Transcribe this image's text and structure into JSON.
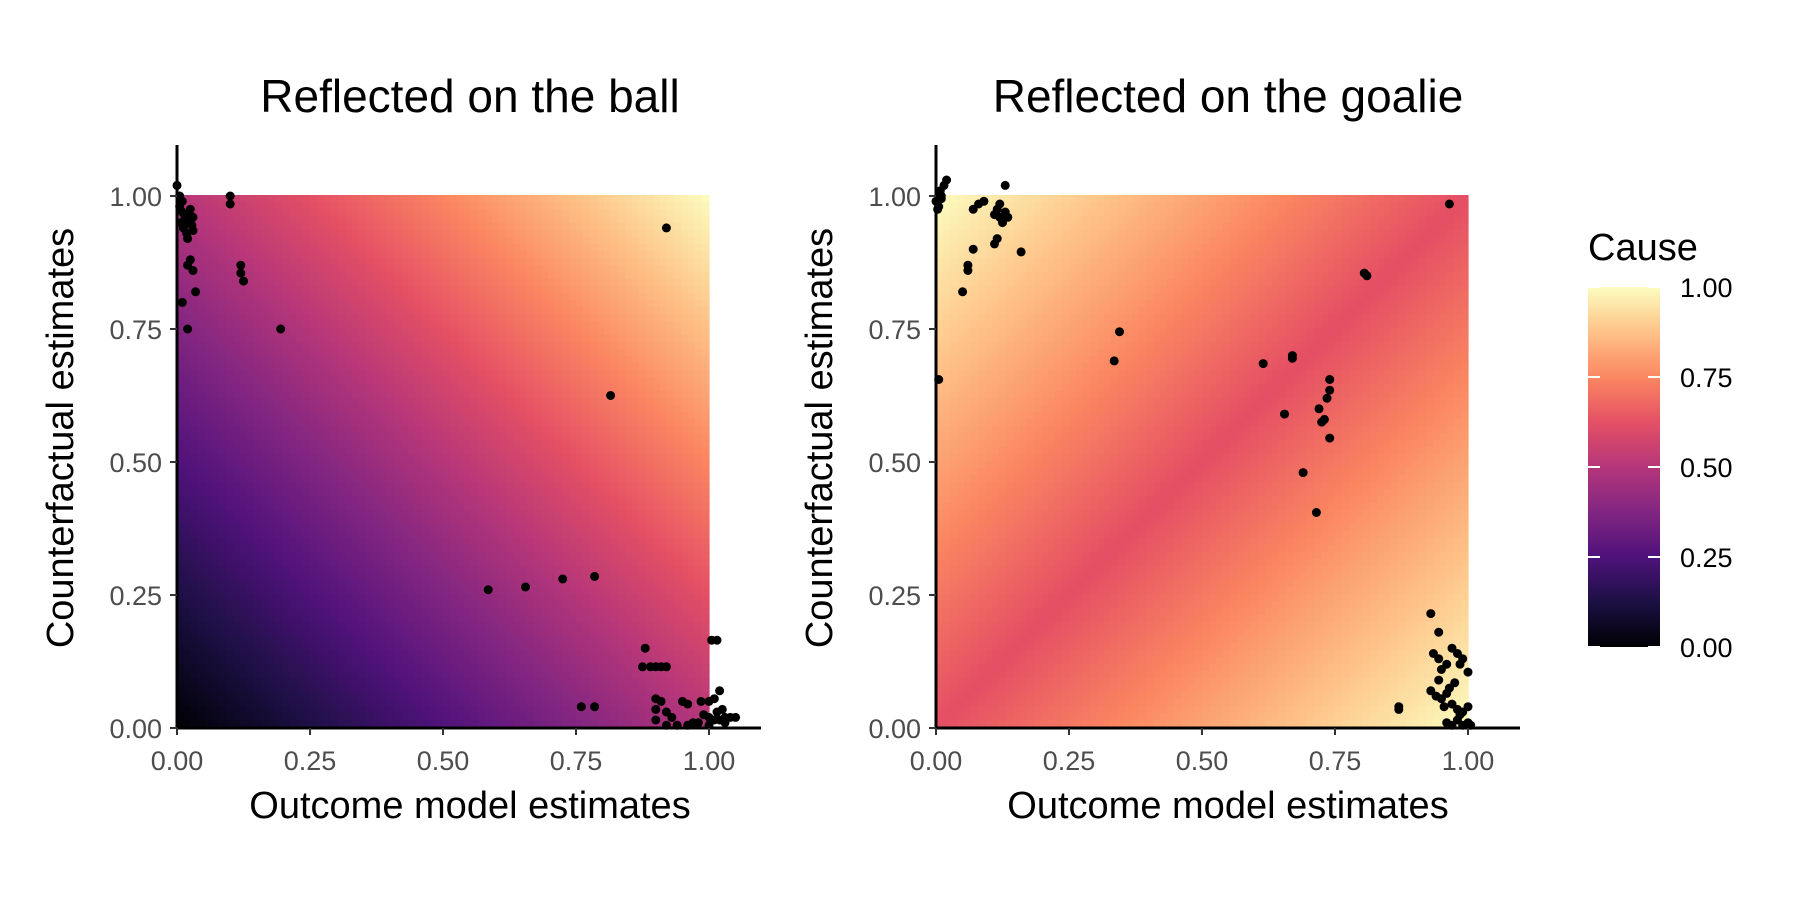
{
  "chart_data": [
    {
      "type": "scatter",
      "title": "Reflected on the ball",
      "xlabel": "Outcome model estimates",
      "ylabel": "Counterfactual estimates",
      "xlim": [
        0,
        1.1
      ],
      "ylim": [
        0,
        1.1
      ],
      "xticks": [
        "0.00",
        "0.25",
        "0.50",
        "0.75",
        "1.00"
      ],
      "yticks": [
        "0.00",
        "0.25",
        "0.50",
        "0.75",
        "1.00"
      ],
      "heatmap_fill": "Cause = (outcome + counterfactual) / 2 over the unit square",
      "points": [
        [
          0.0,
          1.02
        ],
        [
          0.005,
          1.0
        ],
        [
          0.01,
          0.99
        ],
        [
          0.01,
          0.97
        ],
        [
          0.015,
          0.96
        ],
        [
          0.02,
          0.95
        ],
        [
          0.012,
          0.94
        ],
        [
          0.022,
          0.965
        ],
        [
          0.025,
          0.975
        ],
        [
          0.018,
          0.93
        ],
        [
          0.008,
          0.95
        ],
        [
          0.03,
          0.96
        ],
        [
          0.028,
          0.945
        ],
        [
          0.03,
          0.935
        ],
        [
          0.005,
          0.98
        ],
        [
          0.02,
          0.92
        ],
        [
          0.025,
          0.88
        ],
        [
          0.02,
          0.87
        ],
        [
          0.03,
          0.86
        ],
        [
          0.035,
          0.82
        ],
        [
          0.01,
          0.8
        ],
        [
          0.02,
          0.75
        ],
        [
          0.1,
          1.0
        ],
        [
          0.1,
          0.985
        ],
        [
          0.12,
          0.87
        ],
        [
          0.12,
          0.855
        ],
        [
          0.125,
          0.84
        ],
        [
          0.195,
          0.75
        ],
        [
          0.92,
          0.94
        ],
        [
          0.815,
          0.625
        ],
        [
          0.585,
          0.26
        ],
        [
          0.655,
          0.265
        ],
        [
          0.725,
          0.28
        ],
        [
          0.785,
          0.285
        ],
        [
          0.76,
          0.04
        ],
        [
          0.785,
          0.04
        ],
        [
          0.88,
          0.15
        ],
        [
          0.875,
          0.115
        ],
        [
          0.89,
          0.115
        ],
        [
          0.9,
          0.115
        ],
        [
          0.91,
          0.115
        ],
        [
          0.92,
          0.115
        ],
        [
          0.9,
          0.055
        ],
        [
          0.91,
          0.05
        ],
        [
          0.9,
          0.035
        ],
        [
          0.92,
          0.03
        ],
        [
          0.9,
          0.015
        ],
        [
          0.93,
          0.02
        ],
        [
          0.92,
          0.005
        ],
        [
          0.94,
          0.005
        ],
        [
          0.96,
          0.005
        ],
        [
          0.97,
          0.01
        ],
        [
          0.95,
          0.05
        ],
        [
          0.96,
          0.045
        ],
        [
          0.985,
          0.05
        ],
        [
          1.0,
          0.05
        ],
        [
          1.01,
          0.055
        ],
        [
          1.02,
          0.07
        ],
        [
          1.005,
          0.165
        ],
        [
          1.015,
          0.165
        ],
        [
          0.99,
          0.025
        ],
        [
          1.0,
          0.02
        ],
        [
          1.01,
          0.015
        ],
        [
          1.02,
          0.015
        ],
        [
          1.03,
          0.02
        ],
        [
          1.04,
          0.02
        ],
        [
          1.05,
          0.02
        ],
        [
          1.03,
          0.01
        ],
        [
          1.0,
          0.005
        ],
        [
          0.98,
          0.01
        ],
        [
          1.015,
          0.03
        ],
        [
          1.025,
          0.035
        ]
      ]
    },
    {
      "type": "scatter",
      "title": "Reflected on the goalie",
      "xlabel": "Outcome model estimates",
      "ylabel": "Counterfactual estimates",
      "xlim": [
        0,
        1.1
      ],
      "ylim": [
        0,
        1.1
      ],
      "xticks": [
        "0.00",
        "0.25",
        "0.50",
        "0.75",
        "1.00"
      ],
      "yticks": [
        "0.00",
        "0.25",
        "0.50",
        "0.75",
        "1.00"
      ],
      "heatmap_fill": "Cause = (outcome + (1 - counterfactual)) / 2 over the unit square",
      "points": [
        [
          0.0,
          0.99
        ],
        [
          0.005,
          0.98
        ],
        [
          0.01,
          1.0
        ],
        [
          0.015,
          1.02
        ],
        [
          0.02,
          1.03
        ],
        [
          0.01,
          0.995
        ],
        [
          0.003,
          0.975
        ],
        [
          0.008,
          1.01
        ],
        [
          0.005,
          0.655
        ],
        [
          0.07,
          0.975
        ],
        [
          0.08,
          0.985
        ],
        [
          0.09,
          0.99
        ],
        [
          0.11,
          0.965
        ],
        [
          0.115,
          0.975
        ],
        [
          0.12,
          0.96
        ],
        [
          0.125,
          0.95
        ],
        [
          0.13,
          0.97
        ],
        [
          0.135,
          0.96
        ],
        [
          0.12,
          0.985
        ],
        [
          0.13,
          1.02
        ],
        [
          0.11,
          0.91
        ],
        [
          0.115,
          0.92
        ],
        [
          0.16,
          0.895
        ],
        [
          0.05,
          0.82
        ],
        [
          0.06,
          0.86
        ],
        [
          0.06,
          0.87
        ],
        [
          0.07,
          0.9
        ],
        [
          0.335,
          0.69
        ],
        [
          0.345,
          0.745
        ],
        [
          0.615,
          0.685
        ],
        [
          0.655,
          0.59
        ],
        [
          0.67,
          0.695
        ],
        [
          0.67,
          0.7
        ],
        [
          0.69,
          0.48
        ],
        [
          0.715,
          0.405
        ],
        [
          0.72,
          0.6
        ],
        [
          0.725,
          0.575
        ],
        [
          0.73,
          0.58
        ],
        [
          0.735,
          0.62
        ],
        [
          0.74,
          0.635
        ],
        [
          0.74,
          0.655
        ],
        [
          0.74,
          0.545
        ],
        [
          0.805,
          0.855
        ],
        [
          0.81,
          0.85
        ],
        [
          0.965,
          0.985
        ],
        [
          0.93,
          0.215
        ],
        [
          0.935,
          0.14
        ],
        [
          0.945,
          0.18
        ],
        [
          0.945,
          0.13
        ],
        [
          0.95,
          0.11
        ],
        [
          0.96,
          0.12
        ],
        [
          0.97,
          0.15
        ],
        [
          0.98,
          0.14
        ],
        [
          0.99,
          0.13
        ],
        [
          1.0,
          0.105
        ],
        [
          0.985,
          0.12
        ],
        [
          0.93,
          0.07
        ],
        [
          0.94,
          0.06
        ],
        [
          0.95,
          0.055
        ],
        [
          0.96,
          0.065
        ],
        [
          0.955,
          0.04
        ],
        [
          0.97,
          0.045
        ],
        [
          0.98,
          0.035
        ],
        [
          0.99,
          0.03
        ],
        [
          1.0,
          0.04
        ],
        [
          0.965,
          0.075
        ],
        [
          0.975,
          0.085
        ],
        [
          0.945,
          0.09
        ],
        [
          0.96,
          0.01
        ],
        [
          0.97,
          0.005
        ],
        [
          0.98,
          0.015
        ],
        [
          0.99,
          0.005
        ],
        [
          1.0,
          0.01
        ],
        [
          1.005,
          0.005
        ],
        [
          0.985,
          0.025
        ],
        [
          0.87,
          0.04
        ],
        [
          0.87,
          0.035
        ]
      ]
    }
  ],
  "legend": {
    "title": "Cause",
    "ticks": [
      "0.00",
      "0.25",
      "0.50",
      "0.75",
      "1.00"
    ],
    "colormap": "magma",
    "stops": [
      "#000004",
      "#1c1044",
      "#4f127b",
      "#812581",
      "#b5367a",
      "#e55064",
      "#fb8761",
      "#fec287",
      "#fcfdbf"
    ]
  }
}
